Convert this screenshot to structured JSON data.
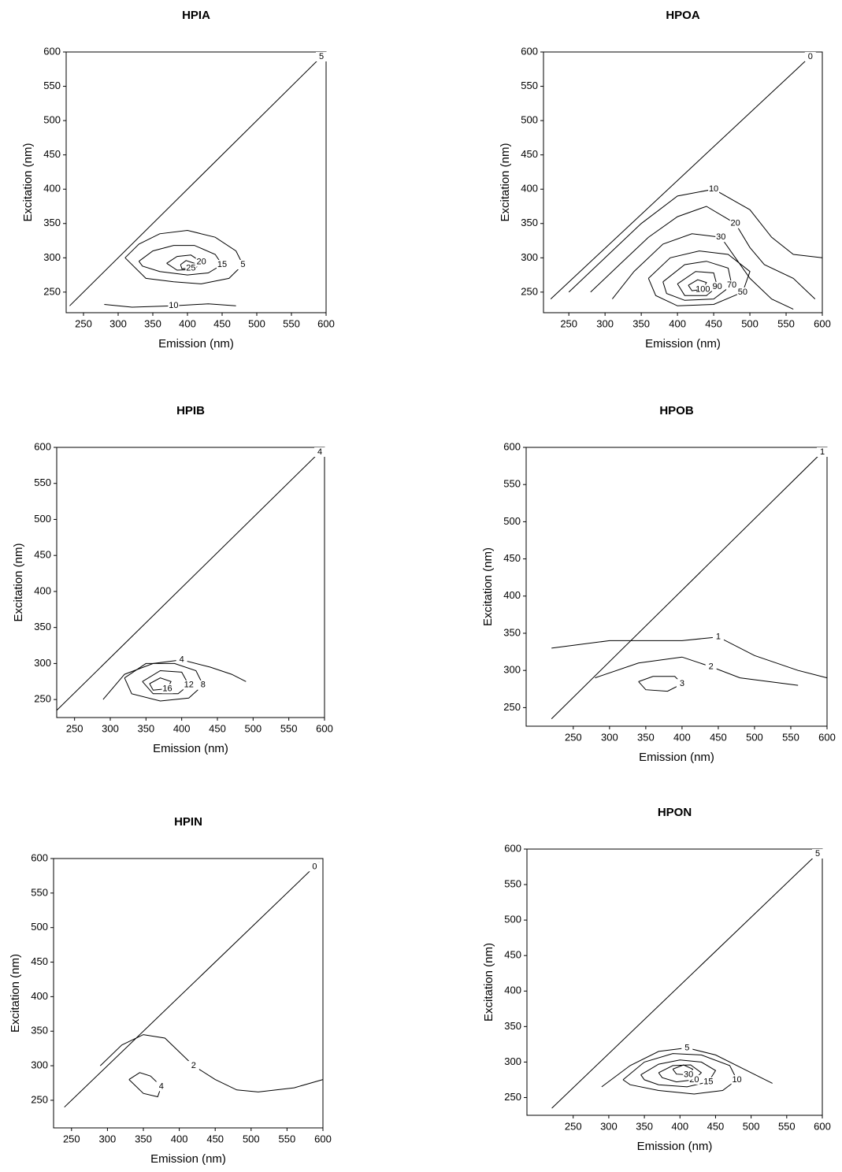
{
  "chart_data": [
    {
      "type": "contour",
      "title": "HPIA",
      "x_label": "Emission (nm)",
      "y_label": "Excitation (nm)",
      "xlim": [
        225,
        600
      ],
      "ylim": [
        220,
        600
      ],
      "xticks": [
        250,
        300,
        350,
        400,
        450,
        500,
        550,
        600
      ],
      "yticks": [
        250,
        300,
        350,
        400,
        450,
        500,
        550,
        600
      ],
      "contours": [
        {
          "level": 5,
          "x": [
            230,
            600
          ],
          "y": [
            230,
            600
          ]
        },
        {
          "level": 5,
          "x": [
            310,
            330,
            360,
            400,
            440,
            470,
            480,
            460,
            420,
            380,
            340,
            310
          ],
          "y": [
            300,
            320,
            335,
            340,
            330,
            310,
            290,
            270,
            262,
            265,
            270,
            300
          ]
        },
        {
          "level": 15,
          "x": [
            330,
            350,
            380,
            410,
            440,
            450,
            430,
            400,
            360,
            335,
            330
          ],
          "y": [
            295,
            310,
            318,
            318,
            305,
            290,
            278,
            275,
            280,
            288,
            295
          ]
        },
        {
          "level": 20,
          "x": [
            370,
            385,
            405,
            420,
            410,
            385,
            370
          ],
          "y": [
            292,
            302,
            304,
            294,
            283,
            282,
            292
          ]
        },
        {
          "level": 25,
          "x": [
            390,
            398,
            410,
            405,
            392,
            390
          ],
          "y": [
            290,
            296,
            292,
            285,
            284,
            290
          ]
        },
        {
          "level": 10,
          "x": [
            280,
            320,
            380,
            430,
            470
          ],
          "y": [
            232,
            228,
            230,
            233,
            230
          ]
        }
      ]
    },
    {
      "type": "contour",
      "title": "HPOA",
      "x_label": "Emission (nm)",
      "y_label": "Excitation (nm)",
      "xlim": [
        215,
        600
      ],
      "ylim": [
        220,
        600
      ],
      "xticks": [
        250,
        300,
        350,
        400,
        450,
        500,
        550,
        600
      ],
      "yticks": [
        250,
        300,
        350,
        400,
        450,
        500,
        550,
        600
      ],
      "contours": [
        {
          "level": 0,
          "x": [
            225,
            590
          ],
          "y": [
            240,
            600
          ]
        },
        {
          "level": 10,
          "x": [
            250,
            300,
            350,
            400,
            450,
            500,
            530,
            560,
            600
          ],
          "y": [
            250,
            300,
            350,
            390,
            400,
            370,
            330,
            305,
            300
          ]
        },
        {
          "level": 20,
          "x": [
            280,
            320,
            360,
            400,
            440,
            480,
            500,
            520,
            560,
            590
          ],
          "y": [
            250,
            290,
            330,
            360,
            375,
            350,
            315,
            290,
            270,
            240
          ]
        },
        {
          "level": 30,
          "x": [
            310,
            340,
            380,
            420,
            460,
            480,
            500,
            530,
            560
          ],
          "y": [
            240,
            280,
            320,
            335,
            330,
            300,
            270,
            240,
            225
          ]
        },
        {
          "level": 50,
          "x": [
            360,
            390,
            430,
            470,
            500,
            490,
            450,
            400,
            370,
            360
          ],
          "y": [
            270,
            300,
            310,
            305,
            280,
            250,
            232,
            230,
            245,
            270
          ]
        },
        {
          "level": 70,
          "x": [
            380,
            410,
            440,
            470,
            475,
            450,
            410,
            385,
            380
          ],
          "y": [
            265,
            290,
            295,
            285,
            260,
            240,
            238,
            248,
            265
          ]
        },
        {
          "level": 90,
          "x": [
            400,
            425,
            450,
            455,
            440,
            410,
            400
          ],
          "y": [
            262,
            280,
            278,
            258,
            245,
            245,
            262
          ]
        },
        {
          "level": 100,
          "x": [
            415,
            428,
            440,
            435,
            420,
            415
          ],
          "y": [
            260,
            268,
            264,
            254,
            252,
            260
          ]
        }
      ]
    },
    {
      "type": "contour",
      "title": "HPIB",
      "x_label": "Emission (nm)",
      "y_label": "Excitation (nm)",
      "xlim": [
        225,
        600
      ],
      "ylim": [
        225,
        600
      ],
      "xticks": [
        250,
        300,
        350,
        400,
        450,
        500,
        550,
        600
      ],
      "yticks": [
        250,
        300,
        350,
        400,
        450,
        500,
        550,
        600
      ],
      "contours": [
        {
          "level": 4,
          "x": [
            225,
            600
          ],
          "y": [
            235,
            600
          ]
        },
        {
          "level": 4,
          "x": [
            290,
            320,
            360,
            400,
            440,
            470,
            490
          ],
          "y": [
            250,
            285,
            300,
            305,
            295,
            285,
            275
          ]
        },
        {
          "level": 8,
          "x": [
            320,
            350,
            390,
            420,
            430,
            410,
            370,
            330,
            320
          ],
          "y": [
            280,
            300,
            300,
            290,
            270,
            252,
            248,
            258,
            280
          ]
        },
        {
          "level": 12,
          "x": [
            345,
            370,
            400,
            410,
            395,
            360,
            345
          ],
          "y": [
            275,
            290,
            288,
            270,
            258,
            258,
            275
          ]
        },
        {
          "level": 16,
          "x": [
            355,
            370,
            385,
            380,
            360,
            355
          ],
          "y": [
            272,
            280,
            275,
            265,
            263,
            272
          ]
        }
      ]
    },
    {
      "type": "contour",
      "title": "HPOB",
      "x_label": "Emission (nm)",
      "y_label": "Excitation (nm)",
      "xlim": [
        185,
        600
      ],
      "ylim": [
        225,
        600
      ],
      "xticks": [
        250,
        300,
        350,
        400,
        450,
        500,
        550,
        600
      ],
      "yticks": [
        250,
        300,
        350,
        400,
        450,
        500,
        550,
        600
      ],
      "contours": [
        {
          "level": 1,
          "x": [
            220,
            600
          ],
          "y": [
            235,
            600
          ]
        },
        {
          "level": 1,
          "x": [
            220,
            300,
            400,
            450,
            500,
            560,
            600
          ],
          "y": [
            330,
            340,
            340,
            345,
            320,
            300,
            290
          ]
        },
        {
          "level": 2,
          "x": [
            280,
            340,
            400,
            440,
            480,
            520,
            560
          ],
          "y": [
            290,
            310,
            318,
            305,
            290,
            285,
            280
          ]
        },
        {
          "level": 3,
          "x": [
            340,
            360,
            390,
            400,
            380,
            350,
            340
          ],
          "y": [
            285,
            292,
            292,
            282,
            272,
            274,
            285
          ]
        }
      ]
    },
    {
      "type": "contour",
      "title": "HPIN",
      "x_label": "Emission (nm)",
      "y_label": "Excitation (nm)",
      "xlim": [
        225,
        600
      ],
      "ylim": [
        210,
        600
      ],
      "xticks": [
        250,
        300,
        350,
        400,
        450,
        500,
        550,
        600
      ],
      "yticks": [
        250,
        300,
        350,
        400,
        450,
        500,
        550,
        600
      ],
      "contours": [
        {
          "level": 0,
          "x": [
            240,
            595
          ],
          "y": [
            240,
            595
          ]
        },
        {
          "level": 2,
          "x": [
            290,
            320,
            350,
            380,
            400,
            420,
            450,
            480,
            510,
            560,
            600
          ],
          "y": [
            300,
            330,
            345,
            340,
            320,
            300,
            280,
            265,
            262,
            268,
            280
          ]
        },
        {
          "level": 4,
          "x": [
            330,
            345,
            360,
            375,
            370,
            350,
            330
          ],
          "y": [
            280,
            290,
            285,
            270,
            255,
            260,
            280
          ]
        }
      ]
    },
    {
      "type": "contour",
      "title": "HPON",
      "x_label": "Emission (nm)",
      "y_label": "Excitation (nm)",
      "xlim": [
        185,
        600
      ],
      "ylim": [
        225,
        600
      ],
      "xticks": [
        250,
        300,
        350,
        400,
        450,
        500,
        550,
        600
      ],
      "yticks": [
        250,
        300,
        350,
        400,
        450,
        500,
        550,
        600
      ],
      "contours": [
        {
          "level": 5,
          "x": [
            220,
            600
          ],
          "y": [
            235,
            600
          ]
        },
        {
          "level": 5,
          "x": [
            290,
            330,
            370,
            410,
            450,
            490,
            530
          ],
          "y": [
            265,
            295,
            315,
            320,
            310,
            290,
            270
          ]
        },
        {
          "level": 10,
          "x": [
            320,
            350,
            390,
            430,
            470,
            480,
            460,
            420,
            370,
            330,
            320
          ],
          "y": [
            275,
            300,
            312,
            310,
            295,
            275,
            260,
            255,
            260,
            268,
            275
          ]
        },
        {
          "level": 15,
          "x": [
            345,
            370,
            400,
            430,
            450,
            440,
            410,
            370,
            350,
            345
          ],
          "y": [
            282,
            297,
            303,
            300,
            288,
            272,
            265,
            268,
            275,
            282
          ]
        },
        {
          "level": 20,
          "x": [
            370,
            390,
            415,
            430,
            420,
            395,
            375,
            370
          ],
          "y": [
            285,
            295,
            296,
            285,
            275,
            272,
            278,
            285
          ]
        },
        {
          "level": 30,
          "x": [
            390,
            405,
            418,
            412,
            395,
            390
          ],
          "y": [
            290,
            296,
            290,
            282,
            283,
            290
          ]
        }
      ]
    }
  ]
}
